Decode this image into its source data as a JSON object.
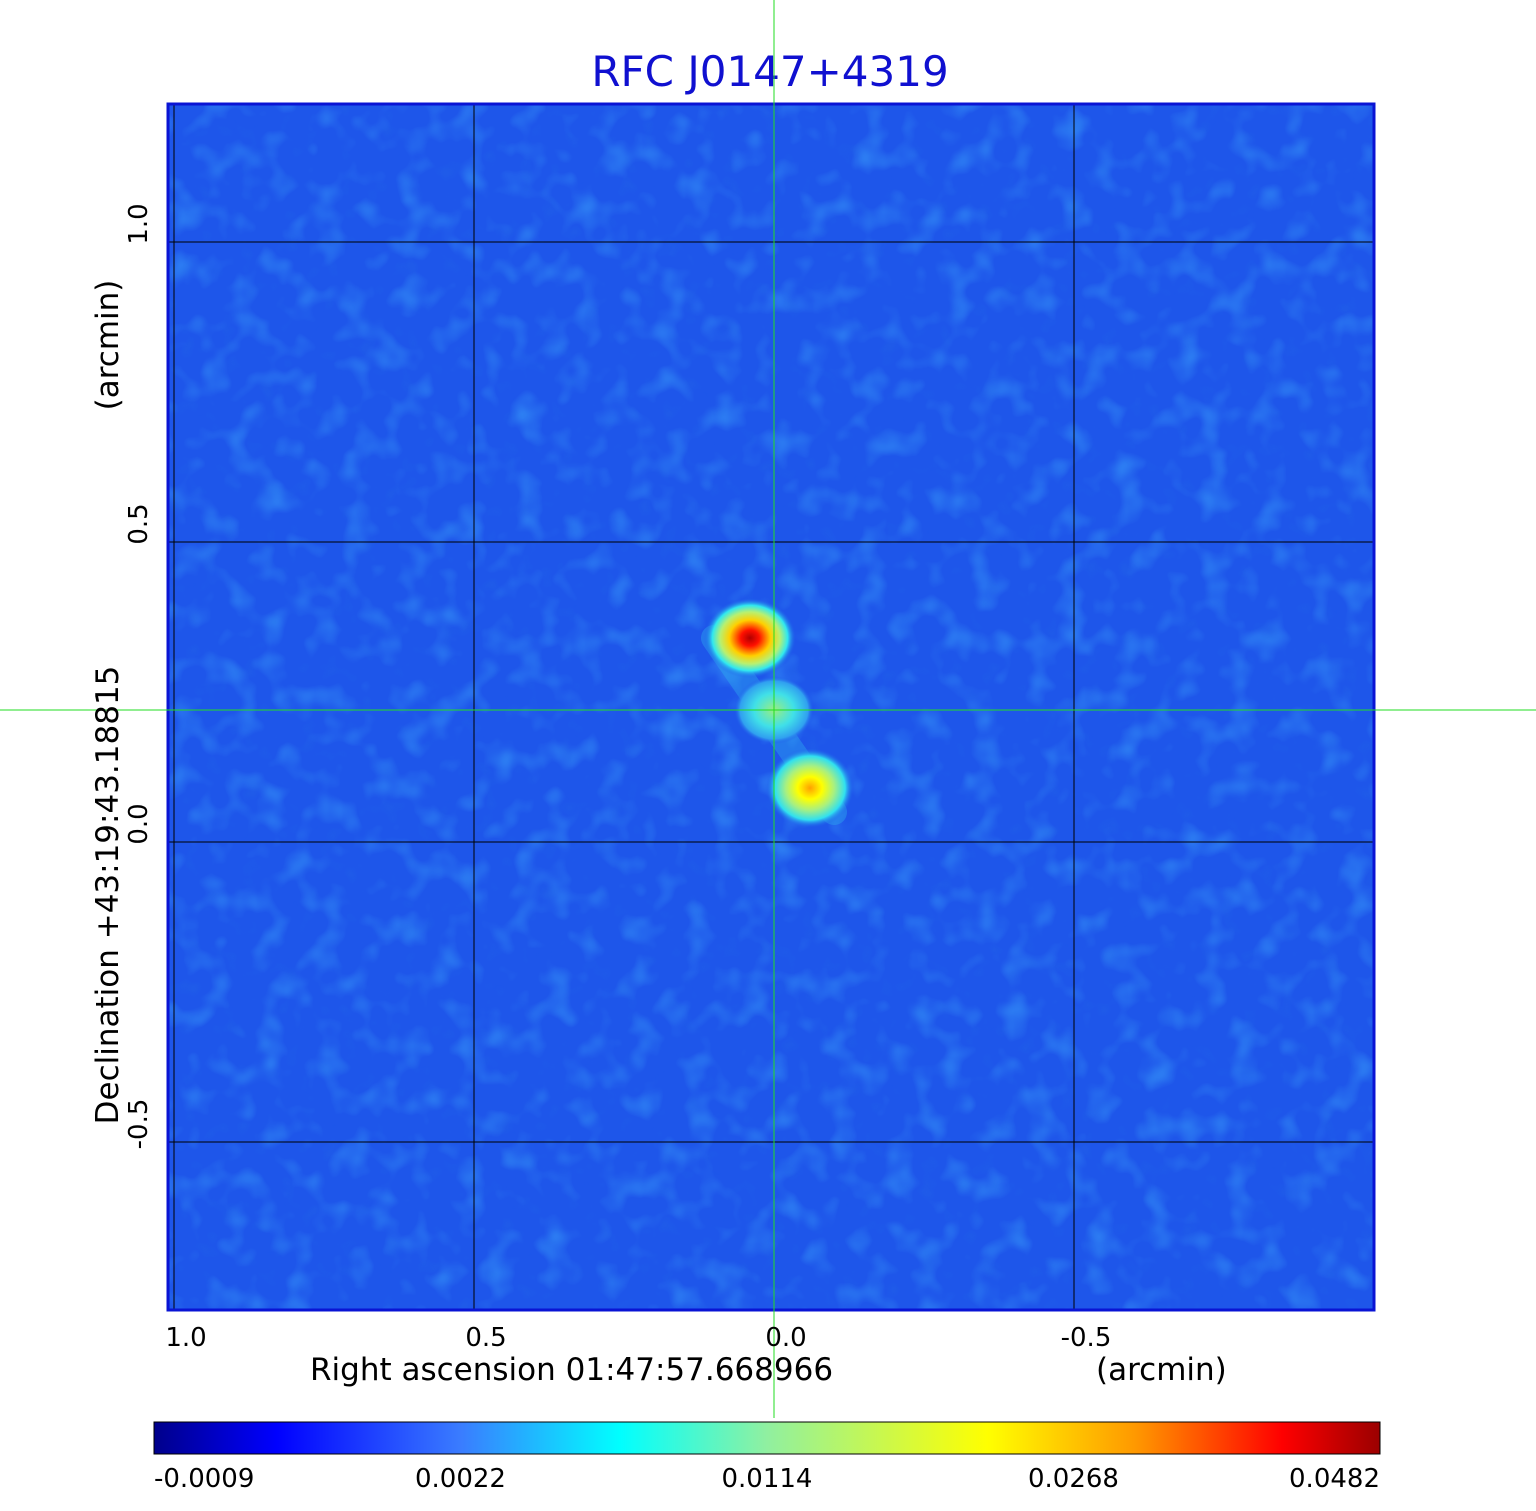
{
  "chart_data": {
    "type": "heatmap",
    "title": "RFC J0147+4319",
    "xlabel": "Right ascension  01:47:57.668966",
    "xunit": "(arcmin)",
    "ylabel": "Declination  +43:19:43.18815",
    "yunit": "(arcmin)",
    "x_ticks": [
      1.0,
      0.5,
      0.0,
      -0.5
    ],
    "x_tick_labels": [
      "1.0",
      "0.5",
      "0.0",
      "-0.5"
    ],
    "y_ticks": [
      1.0,
      0.5,
      0.0,
      -0.5
    ],
    "y_tick_labels": [
      "1.0",
      "0.5",
      "0.0",
      "-0.5"
    ],
    "xlim": [
      1.01,
      -1.0
    ],
    "ylim": [
      -0.78,
      1.23
    ],
    "grid": true,
    "crosshair": {
      "x": 0.0,
      "y": 0.22
    },
    "colormap": "jet",
    "colorbar": {
      "ticks": [
        "-0.0009",
        "0.0022",
        "0.0114",
        "0.0268",
        "0.0482"
      ],
      "min": -0.0009,
      "max": 0.0482
    },
    "components": [
      {
        "x": 0.04,
        "y": 0.34,
        "peak": 0.0482
      },
      {
        "x": 0.0,
        "y": 0.22,
        "peak": 0.0125
      },
      {
        "x": -0.06,
        "y": 0.09,
        "peak": 0.03
      }
    ],
    "colors": {
      "title": "#1010d0",
      "frame": "#0a14d4",
      "grid": "#000000",
      "crosshair": "#22dd22",
      "background_map": "#1e56ea"
    }
  }
}
